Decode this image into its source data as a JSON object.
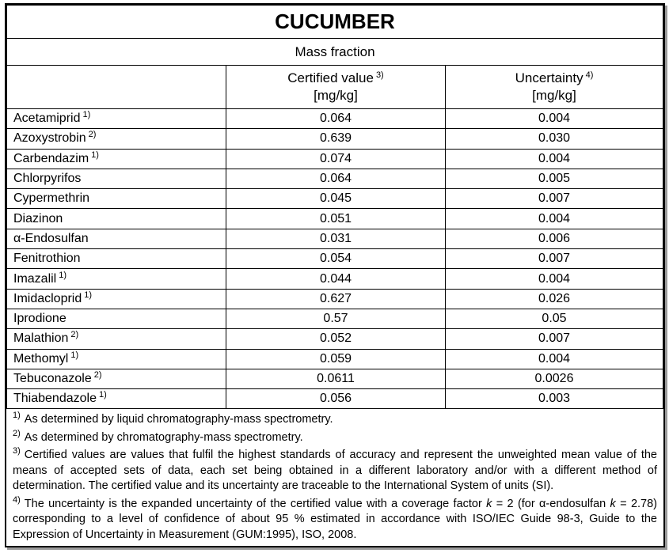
{
  "title": "CUCUMBER",
  "group_header": "Mass fraction",
  "columns": [
    {
      "label": "Certified value",
      "note": "3)",
      "unit": "[mg/kg]"
    },
    {
      "label": "Uncertainty",
      "note": "4)",
      "unit": "[mg/kg]"
    }
  ],
  "rows": [
    {
      "name": "Acetamiprid",
      "note": "1)",
      "value": "0.064",
      "uncertainty": "0.004"
    },
    {
      "name": "Azoxystrobin",
      "note": "2)",
      "value": "0.639",
      "uncertainty": "0.030"
    },
    {
      "name": "Carbendazim",
      "note": "1)",
      "value": "0.074",
      "uncertainty": "0.004"
    },
    {
      "name": "Chlorpyrifos",
      "note": null,
      "value": "0.064",
      "uncertainty": "0.005"
    },
    {
      "name": "Cypermethrin",
      "note": null,
      "value": "0.045",
      "uncertainty": "0.007"
    },
    {
      "name": "Diazinon",
      "note": null,
      "value": "0.051",
      "uncertainty": "0.004"
    },
    {
      "name": "α-Endosulfan",
      "note": null,
      "value": "0.031",
      "uncertainty": "0.006"
    },
    {
      "name": "Fenitrothion",
      "note": null,
      "value": "0.054",
      "uncertainty": "0.007"
    },
    {
      "name": "Imazalil",
      "note": "1)",
      "value": "0.044",
      "uncertainty": "0.004"
    },
    {
      "name": "Imidacloprid",
      "note": "1)",
      "value": "0.627",
      "uncertainty": "0.026"
    },
    {
      "name": "Iprodione",
      "note": null,
      "value": "0.57",
      "uncertainty": "0.05"
    },
    {
      "name": "Malathion",
      "note": "2)",
      "value": "0.052",
      "uncertainty": "0.007"
    },
    {
      "name": "Methomyl",
      "note": "1)",
      "value": "0.059",
      "uncertainty": "0.004"
    },
    {
      "name": "Tebuconazole",
      "note": "2)",
      "value": "0.0611",
      "uncertainty": "0.0026"
    },
    {
      "name": "Thiabendazole",
      "note": "1)",
      "value": "0.056",
      "uncertainty": "0.003"
    }
  ],
  "footnotes": [
    {
      "mark": "1)",
      "parts": [
        "As determined by liquid chromatography-mass spectrometry."
      ]
    },
    {
      "mark": "2)",
      "parts": [
        "As determined by chromatography-mass spectrometry."
      ]
    },
    {
      "mark": "3)",
      "parts": [
        "Certified values are values that fulfil the highest standards of accuracy and represent the unweighted mean value of the means of accepted sets of data, each set being obtained in a different laboratory and/or with a different method of determination. The certified value and its uncertainty are traceable to the International System of units (SI)."
      ]
    },
    {
      "mark": "4)",
      "parts": [
        "The uncertainty is the expanded uncertainty of the certified value with a coverage factor ",
        "k",
        " = 2 (for α-endosulfan ",
        "k",
        " = 2.78) corresponding to a level of confidence of about 95 % estimated in accordance with ISO/IEC Guide 98-3, Guide to the Expression of Uncertainty in Measurement (GUM:1995), ISO, 2008."
      ]
    }
  ]
}
